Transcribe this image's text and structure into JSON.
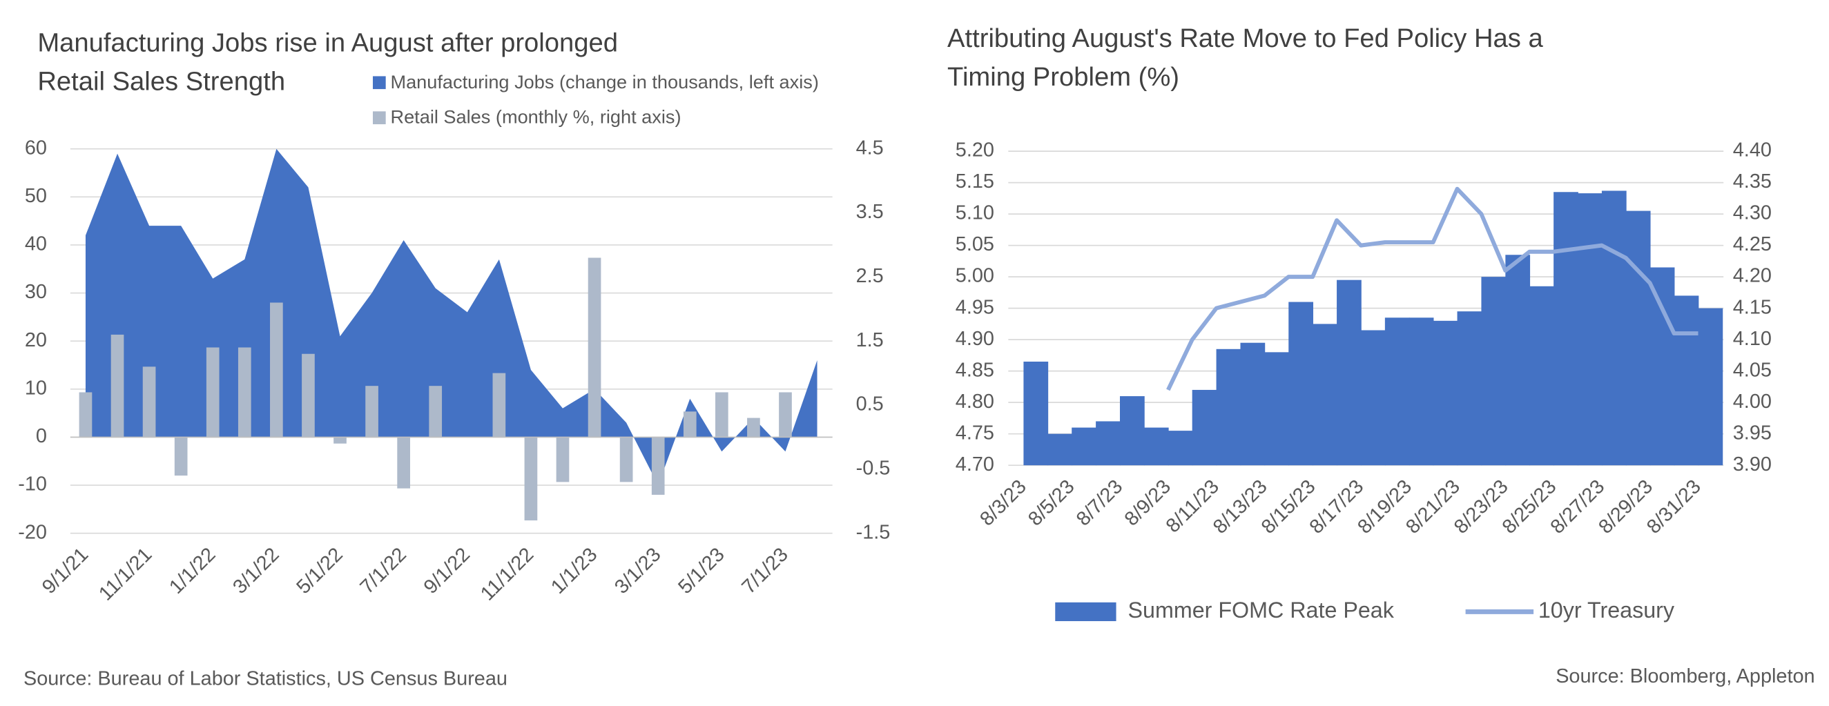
{
  "chart_data": [
    {
      "type": "combo",
      "title": [
        "Manufacturing Jobs rise in August after prolonged",
        "Retail Sales Strength"
      ],
      "categories": [
        "9/1/21",
        null,
        "11/1/21",
        null,
        "1/1/22",
        null,
        "3/1/22",
        null,
        "5/1/22",
        null,
        "7/1/22",
        null,
        "9/1/22",
        null,
        "11/1/22",
        null,
        "1/1/23",
        null,
        "3/1/23",
        null,
        "5/1/23",
        null,
        "7/1/23",
        null
      ],
      "series": [
        {
          "name": "Manufacturing Jobs (change in thousands, left axis)",
          "type": "area",
          "color": "#4472c4",
          "values": [
            42,
            59,
            44,
            44,
            33,
            37,
            60,
            52,
            21,
            30,
            41,
            31,
            26,
            37,
            14,
            6,
            10,
            3,
            -10,
            8,
            -3,
            4,
            -3,
            16
          ]
        },
        {
          "name": "Retail Sales (monthly %, right axis)",
          "type": "bar",
          "color": "#adb9ca",
          "axis": "y2",
          "values": [
            0.7,
            1.6,
            1.1,
            -0.6,
            1.4,
            1.4,
            2.1,
            1.3,
            -0.1,
            0.8,
            -0.8,
            0.8,
            0,
            1.0,
            -1.3,
            -0.7,
            2.8,
            -0.7,
            -0.9,
            0.4,
            0.7,
            0.3,
            0.7,
            null
          ]
        }
      ],
      "ylim": [
        -20,
        60
      ],
      "yticks": [
        -20,
        -10,
        0,
        10,
        20,
        30,
        40,
        50,
        60
      ],
      "y2lim": [
        -1.5,
        4.5
      ],
      "y2ticks": [
        -1.5,
        -0.5,
        0.5,
        1.5,
        2.5,
        3.5,
        4.5
      ],
      "grid": true,
      "legend": "top",
      "source": "Source: Bureau of Labor Statistics, US Census Bureau"
    },
    {
      "type": "combo",
      "title": [
        "Attributing August's Rate Move to Fed Policy Has a",
        "Timing Problem (%)"
      ],
      "categories": [
        "8/3/23",
        null,
        "8/5/23",
        null,
        "8/7/23",
        null,
        "8/9/23",
        null,
        "8/11/23",
        null,
        "8/13/23",
        null,
        "8/15/23",
        null,
        "8/17/23",
        null,
        "8/19/23",
        null,
        "8/21/23",
        null,
        "8/23/23",
        null,
        "8/25/23",
        null,
        "8/27/23",
        null,
        "8/29/23",
        null,
        "8/31/23"
      ],
      "series": [
        {
          "name": "Summer FOMC Rate Peak",
          "type": "step",
          "color": "#4472c4",
          "values": [
            4.865,
            4.75,
            4.76,
            4.77,
            4.81,
            4.76,
            4.755,
            4.82,
            4.885,
            4.895,
            4.88,
            4.96,
            4.925,
            4.995,
            4.915,
            4.935,
            4.935,
            4.93,
            4.945,
            5.0,
            5.035,
            4.985,
            5.135,
            5.133,
            5.137,
            5.105,
            5.015,
            4.97,
            4.95
          ]
        },
        {
          "name": "10yr Treasury",
          "type": "line",
          "color": "#8faadc",
          "axis": "y2",
          "values": [
            null,
            null,
            null,
            null,
            null,
            null,
            4.02,
            4.1,
            4.15,
            4.16,
            4.17,
            4.2,
            4.2,
            4.29,
            4.25,
            4.255,
            4.255,
            4.255,
            4.34,
            4.3,
            4.21,
            4.24,
            4.24,
            4.245,
            4.25,
            4.23,
            4.19,
            4.11,
            4.11
          ]
        }
      ],
      "ylim": [
        4.7,
        5.2
      ],
      "yticks": [
        {
          "value": 4.7,
          "label": "4.70"
        },
        4.75,
        {
          "value": 4.8,
          "label": "4.80"
        },
        4.85,
        {
          "value": 4.9,
          "label": "4.90"
        },
        4.95,
        {
          "value": 5.0,
          "label": "5.00"
        },
        5.05,
        {
          "value": 5.1,
          "label": "5.10"
        },
        5.15,
        {
          "value": 5.2,
          "label": "5.20"
        }
      ],
      "y2lim": [
        3.9,
        4.4
      ],
      "y2ticks": [
        {
          "value": 3.9,
          "label": "3.90"
        },
        3.95,
        {
          "value": 4.0,
          "label": "4.00"
        },
        4.05,
        {
          "value": 4.1,
          "label": "4.10"
        },
        4.15,
        {
          "value": 4.2,
          "label": "4.20"
        },
        4.25,
        {
          "value": 4.3,
          "label": "4.30"
        },
        4.35,
        {
          "value": 4.4,
          "label": "4.40"
        }
      ],
      "grid": true,
      "legend": "bottom",
      "source": "Source: Bloomberg, Appleton"
    }
  ]
}
